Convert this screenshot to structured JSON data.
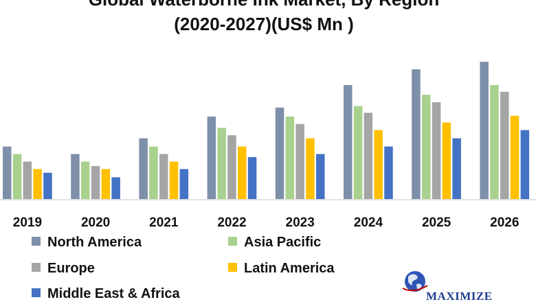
{
  "chart_data": {
    "type": "bar",
    "title": "Global Waterborne Ink Market, By Region",
    "subtitle": "(2020-2027)(US$  Mn )",
    "categories": [
      "2019",
      "2020",
      "2021",
      "2022",
      "2023",
      "2024",
      "2025",
      "2026"
    ],
    "series": [
      {
        "name": "North America",
        "color": "#7e8fa9",
        "values": [
          7.0,
          6.0,
          8.1,
          11.0,
          12.2,
          15.2,
          17.3,
          18.3
        ]
      },
      {
        "name": "Asia Pacific",
        "color": "#a9d18e",
        "values": [
          6.0,
          5.0,
          7.0,
          9.5,
          11.0,
          12.4,
          13.9,
          15.2
        ]
      },
      {
        "name": "Europe",
        "color": "#a5a5a5",
        "values": [
          5.0,
          4.4,
          6.0,
          8.5,
          10.0,
          11.5,
          12.9,
          14.3
        ]
      },
      {
        "name": "Latin America",
        "color": "#ffc000",
        "values": [
          4.0,
          4.0,
          5.0,
          7.0,
          8.1,
          9.2,
          10.2,
          11.1
        ]
      },
      {
        "name": "Middle East & Africa",
        "color": "#4472c4",
        "values": [
          3.5,
          2.9,
          4.0,
          5.6,
          6.0,
          7.0,
          8.1,
          9.2
        ]
      }
    ],
    "ylim": [
      0,
      20
    ],
    "legend_position": "bottom",
    "grid": false
  },
  "logo": {
    "text": "MAXIMIZE"
  }
}
